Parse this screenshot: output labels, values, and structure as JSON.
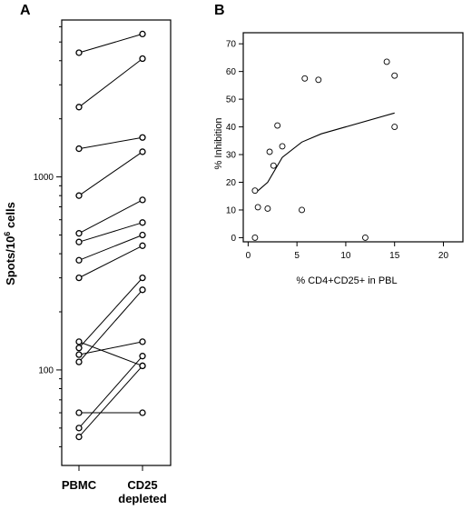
{
  "chart_data": [
    {
      "type": "line",
      "panel_label": "A",
      "ylabel_main": "Spots/10",
      "ylabel_sup": "6",
      "ylabel_tail": " cells",
      "yscale": "log",
      "ylim": [
        32,
        6500
      ],
      "y_tick_labels": [
        "1000",
        "100"
      ],
      "y_tick_values": [
        1000,
        100
      ],
      "minor_y_ticks": [
        30,
        40,
        50,
        60,
        70,
        80,
        90,
        200,
        300,
        400,
        500,
        600,
        700,
        800,
        900,
        2000,
        3000,
        4000,
        5000,
        6000
      ],
      "categories": [
        "PBMC",
        "CD25\ndepleted"
      ],
      "category_lines": [
        [
          "PBMC"
        ],
        [
          "CD25",
          "depleted"
        ]
      ],
      "pairs": [
        {
          "pbmc": 4400,
          "cd25": 5500
        },
        {
          "pbmc": 2300,
          "cd25": 4100
        },
        {
          "pbmc": 1400,
          "cd25": 1600
        },
        {
          "pbmc": 800,
          "cd25": 1350
        },
        {
          "pbmc": 510,
          "cd25": 760
        },
        {
          "pbmc": 460,
          "cd25": 580
        },
        {
          "pbmc": 370,
          "cd25": 500
        },
        {
          "pbmc": 300,
          "cd25": 440
        },
        {
          "pbmc": 140,
          "cd25": 105
        },
        {
          "pbmc": 130,
          "cd25": 300
        },
        {
          "pbmc": 120,
          "cd25": 140
        },
        {
          "pbmc": 110,
          "cd25": 260
        },
        {
          "pbmc": 60,
          "cd25": 60
        },
        {
          "pbmc": 50,
          "cd25": 118
        },
        {
          "pbmc": 45,
          "cd25": 105
        }
      ]
    },
    {
      "type": "scatter",
      "panel_label": "B",
      "xlabel": "% CD4+CD25+ in PBL",
      "ylabel": "% Inhibition",
      "xlim": [
        -0.5,
        22
      ],
      "ylim": [
        -1.5,
        74
      ],
      "x_ticks": [
        0,
        5,
        10,
        15,
        20
      ],
      "y_ticks": [
        0,
        10,
        20,
        30,
        40,
        50,
        60,
        70
      ],
      "points": [
        {
          "x": 0.7,
          "y": 0
        },
        {
          "x": 0.7,
          "y": 17
        },
        {
          "x": 1.0,
          "y": 11
        },
        {
          "x": 2.0,
          "y": 10.5
        },
        {
          "x": 2.2,
          "y": 31
        },
        {
          "x": 2.6,
          "y": 26
        },
        {
          "x": 3.0,
          "y": 40.5
        },
        {
          "x": 3.5,
          "y": 33
        },
        {
          "x": 5.5,
          "y": 10
        },
        {
          "x": 5.8,
          "y": 57.5
        },
        {
          "x": 7.2,
          "y": 57
        },
        {
          "x": 12.0,
          "y": 0
        },
        {
          "x": 14.2,
          "y": 63.5
        },
        {
          "x": 15.0,
          "y": 58.5
        },
        {
          "x": 15.0,
          "y": 40
        }
      ],
      "smooth_curve": [
        {
          "x": 0.7,
          "y": 16
        },
        {
          "x": 2.0,
          "y": 20
        },
        {
          "x": 3.5,
          "y": 29
        },
        {
          "x": 5.5,
          "y": 34.5
        },
        {
          "x": 7.5,
          "y": 37.5
        },
        {
          "x": 15.0,
          "y": 45
        }
      ]
    }
  ]
}
